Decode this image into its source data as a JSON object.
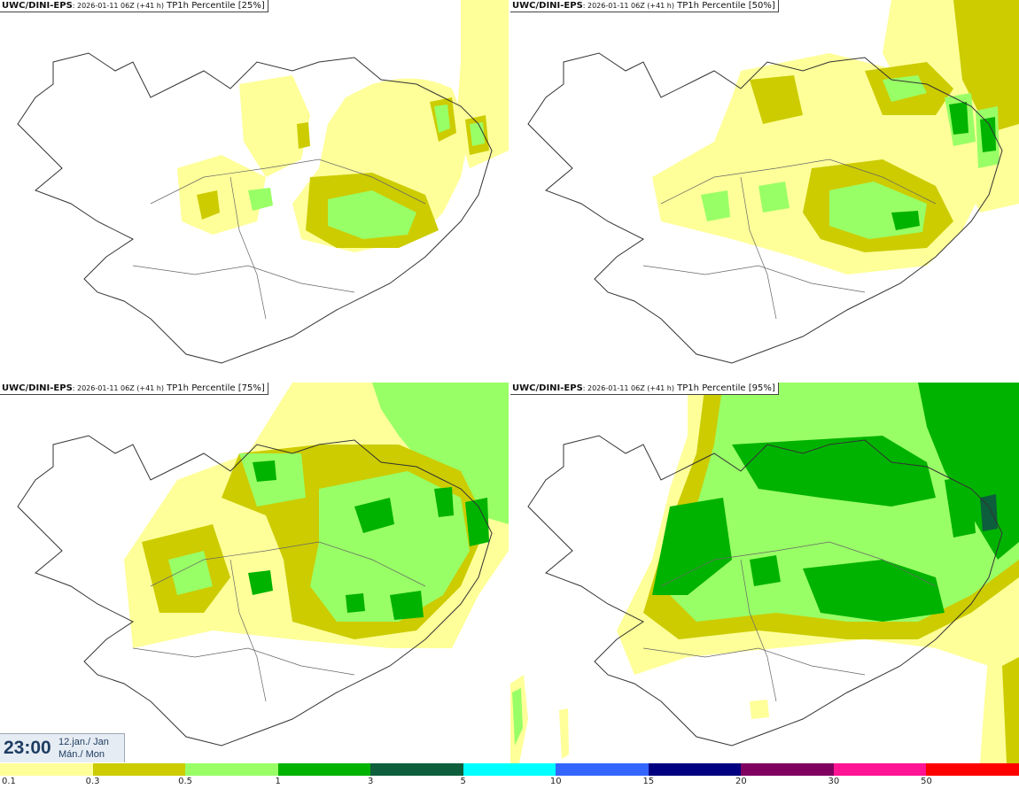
{
  "panels": [
    {
      "source": "UWC/DINI-EPS",
      "run": ": 2026-01-11 06Z (+41 h)",
      "field": "TP1h Percentile [25%]"
    },
    {
      "source": "UWC/DINI-EPS",
      "run": ": 2026-01-11 06Z (+41 h)",
      "field": "TP1h Percentile [50%]"
    },
    {
      "source": "UWC/DINI-EPS",
      "run": ": 2026-01-11 06Z (+41 h)",
      "field": "TP1h Percentile [75%]"
    },
    {
      "source": "UWC/DINI-EPS",
      "run": ": 2026-01-11 06Z (+41 h)",
      "field": "TP1h Percentile [95%]"
    }
  ],
  "valid_time": {
    "clock": "23:00",
    "date_line1": "12.jan./ Jan",
    "date_line2": "Mán./ Mon"
  },
  "legend": {
    "colors": [
      "#ffff99",
      "#cccc00",
      "#99ff66",
      "#00b300",
      "#0d5e3c",
      "#00ffff",
      "#3366ff",
      "#000080",
      "#800060",
      "#ff1493",
      "#ff0000"
    ],
    "labels": [
      "0.1",
      "0.3",
      "0.5",
      "1",
      "3",
      "5",
      "10",
      "15",
      "20",
      "30",
      "50"
    ]
  }
}
